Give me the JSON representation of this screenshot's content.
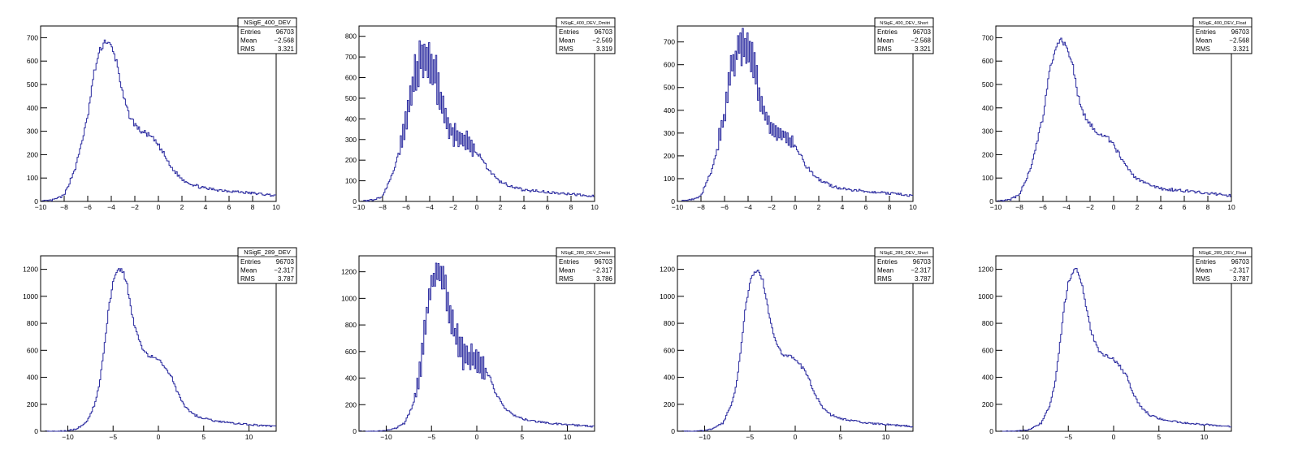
{
  "colors": {
    "line": "#2a2a9f",
    "frame": "#000000",
    "background": "#ffffff"
  },
  "chart_data": [
    {
      "type": "histogram",
      "stats_title": "NSigE_400_DEV",
      "stats": {
        "entries_label": "Entries",
        "entries": "96703",
        "mean_label": "Mean",
        "mean": "-2.568",
        "rms_label": "RMS",
        "rms": "3.321"
      },
      "xlim": [
        -10,
        10
      ],
      "ylim": [
        0,
        750
      ],
      "xticks": [
        -10,
        -8,
        -6,
        -4,
        -2,
        0,
        2,
        4,
        6,
        8,
        10
      ],
      "yticks": [
        0,
        100,
        200,
        300,
        400,
        500,
        600,
        700
      ],
      "x": [
        -10,
        -9,
        -8,
        -7,
        -6,
        -5.5,
        -5,
        -4.5,
        -4,
        -3.5,
        -3,
        -2.5,
        -2,
        -1.5,
        -1,
        -0.5,
        0,
        0.5,
        1,
        2,
        3,
        4,
        5,
        6,
        7,
        8,
        9,
        10
      ],
      "y": [
        0,
        5,
        25,
        150,
        360,
        540,
        640,
        690,
        660,
        590,
        450,
        370,
        330,
        300,
        290,
        270,
        240,
        200,
        150,
        95,
        70,
        55,
        50,
        45,
        40,
        35,
        30,
        25
      ]
    },
    {
      "type": "histogram",
      "stats_title": "NSigE_400_DEV_Dmitri",
      "stats": {
        "entries_label": "Entries",
        "entries": "96703",
        "mean_label": "Mean",
        "mean": "-2.569",
        "rms_label": "RMS",
        "rms": "3.319"
      },
      "xlim": [
        -10,
        10
      ],
      "ylim": [
        0,
        850
      ],
      "xticks": [
        -10,
        -8,
        -6,
        -4,
        -2,
        0,
        2,
        4,
        6,
        8,
        10
      ],
      "yticks": [
        0,
        100,
        200,
        300,
        400,
        500,
        600,
        700,
        800
      ],
      "x": [
        -10,
        -9,
        -8,
        -7,
        -6,
        -5.5,
        -5,
        -4.5,
        -4,
        -3.5,
        -3,
        -2.5,
        -2,
        -1.5,
        -1,
        -0.5,
        0,
        0.5,
        1,
        2,
        3,
        4,
        5,
        6,
        7,
        8,
        9,
        10
      ],
      "y": [
        0,
        5,
        25,
        150,
        390,
        560,
        650,
        700,
        680,
        620,
        470,
        370,
        330,
        300,
        290,
        270,
        240,
        200,
        150,
        95,
        70,
        55,
        50,
        45,
        40,
        35,
        30,
        25
      ],
      "jitter": 110
    },
    {
      "type": "histogram",
      "stats_title": "NSigE_400_DEV_Short",
      "stats": {
        "entries_label": "Entries",
        "entries": "96703",
        "mean_label": "Mean",
        "mean": "-2.568",
        "rms_label": "RMS",
        "rms": "3.321"
      },
      "xlim": [
        -10,
        10
      ],
      "ylim": [
        0,
        770
      ],
      "xticks": [
        -10,
        -8,
        -6,
        -4,
        -2,
        0,
        2,
        4,
        6,
        8,
        10
      ],
      "yticks": [
        0,
        100,
        200,
        300,
        400,
        500,
        600,
        700
      ],
      "x": [
        -10,
        -9,
        -8,
        -7,
        -6,
        -5.5,
        -5,
        -4.5,
        -4,
        -3.5,
        -3,
        -2.5,
        -2,
        -1.5,
        -1,
        -0.5,
        0,
        0.5,
        1,
        2,
        3,
        4,
        5,
        6,
        7,
        8,
        9,
        10
      ],
      "y": [
        0,
        5,
        25,
        150,
        380,
        560,
        650,
        690,
        660,
        590,
        450,
        370,
        330,
        300,
        290,
        270,
        240,
        200,
        150,
        95,
        70,
        55,
        50,
        45,
        40,
        35,
        30,
        25
      ],
      "jitter": 80
    },
    {
      "type": "histogram",
      "stats_title": "NSigE_400_DEV_Float",
      "stats": {
        "entries_label": "Entries",
        "entries": "96703",
        "mean_label": "Mean",
        "mean": "-2.568",
        "rms_label": "RMS",
        "rms": "3.321"
      },
      "xlim": [
        -10,
        10
      ],
      "ylim": [
        0,
        750
      ],
      "xticks": [
        -10,
        -8,
        -6,
        -4,
        -2,
        0,
        2,
        4,
        6,
        8,
        10
      ],
      "yticks": [
        0,
        100,
        200,
        300,
        400,
        500,
        600,
        700
      ],
      "x": [
        -10,
        -9,
        -8,
        -7,
        -6,
        -5.5,
        -5,
        -4.5,
        -4,
        -3.5,
        -3,
        -2.5,
        -2,
        -1.5,
        -1,
        -0.5,
        0,
        0.5,
        1,
        2,
        3,
        4,
        5,
        6,
        7,
        8,
        9,
        10
      ],
      "y": [
        0,
        5,
        25,
        150,
        360,
        540,
        640,
        690,
        660,
        590,
        450,
        370,
        330,
        300,
        290,
        270,
        240,
        200,
        150,
        95,
        70,
        55,
        50,
        45,
        40,
        35,
        30,
        25
      ]
    },
    {
      "type": "histogram",
      "stats_title": "NSigE_289_DEV",
      "stats": {
        "entries_label": "Entries",
        "entries": "96703",
        "mean_label": "Mean",
        "mean": "-2.317",
        "rms_label": "RMS",
        "rms": "3.787"
      },
      "xlim": [
        -13,
        13
      ],
      "ylim": [
        0,
        1300
      ],
      "xticks": [
        -10,
        -5,
        0,
        5,
        10
      ],
      "yticks": [
        0,
        200,
        400,
        600,
        800,
        1000,
        1200
      ],
      "x": [
        -13,
        -11,
        -10,
        -9,
        -8,
        -7,
        -6.5,
        -6,
        -5.5,
        -5,
        -4.5,
        -4,
        -3.5,
        -3,
        -2.5,
        -2,
        -1.5,
        -1,
        -0.5,
        0,
        0.5,
        1,
        1.5,
        2,
        3,
        4,
        5,
        6,
        7,
        8,
        9,
        10,
        11,
        12,
        13
      ],
      "y": [
        0,
        0,
        5,
        20,
        60,
        200,
        350,
        600,
        900,
        1100,
        1190,
        1200,
        1100,
        900,
        750,
        650,
        580,
        560,
        550,
        530,
        500,
        450,
        400,
        300,
        180,
        120,
        95,
        80,
        70,
        60,
        55,
        50,
        45,
        40,
        35
      ]
    },
    {
      "type": "histogram",
      "stats_title": "NSigE_289_DEV_Dmitri",
      "stats": {
        "entries_label": "Entries",
        "entries": "96703",
        "mean_label": "Mean",
        "mean": "-2.317",
        "rms_label": "RMS",
        "rms": "3.786"
      },
      "xlim": [
        -13,
        13
      ],
      "ylim": [
        0,
        1320
      ],
      "xticks": [
        -10,
        -5,
        0,
        5,
        10
      ],
      "yticks": [
        0,
        200,
        400,
        600,
        800,
        1000,
        1200
      ],
      "x": [
        -13,
        -11,
        -10,
        -9,
        -8,
        -7,
        -6.5,
        -6,
        -5.5,
        -5,
        -4.5,
        -4,
        -3.5,
        -3,
        -2.5,
        -2,
        -1.5,
        -1,
        -0.5,
        0,
        0.5,
        1,
        1.5,
        2,
        3,
        4,
        5,
        6,
        7,
        8,
        9,
        10,
        11,
        12,
        13
      ],
      "y": [
        0,
        0,
        5,
        20,
        60,
        200,
        350,
        600,
        900,
        1100,
        1190,
        1200,
        1100,
        900,
        750,
        650,
        580,
        560,
        550,
        530,
        500,
        450,
        400,
        300,
        180,
        120,
        95,
        80,
        70,
        60,
        55,
        50,
        45,
        40,
        35
      ],
      "jitter": 120
    },
    {
      "type": "histogram",
      "stats_title": "NSigE_289_DEV_Short",
      "stats": {
        "entries_label": "Entries",
        "entries": "96703",
        "mean_label": "Mean",
        "mean": "-2.317",
        "rms_label": "RMS",
        "rms": "3.787"
      },
      "xlim": [
        -13,
        13
      ],
      "ylim": [
        0,
        1300
      ],
      "xticks": [
        -10,
        -5,
        0,
        5,
        10
      ],
      "yticks": [
        0,
        200,
        400,
        600,
        800,
        1000,
        1200
      ],
      "x": [
        -13,
        -11,
        -10,
        -9,
        -8,
        -7,
        -6.5,
        -6,
        -5.5,
        -5,
        -4.5,
        -4,
        -3.5,
        -3,
        -2.5,
        -2,
        -1.5,
        -1,
        -0.5,
        0,
        0.5,
        1,
        1.5,
        2,
        3,
        4,
        5,
        6,
        7,
        8,
        9,
        10,
        11,
        12,
        13
      ],
      "y": [
        0,
        0,
        5,
        20,
        60,
        200,
        350,
        600,
        900,
        1100,
        1190,
        1200,
        1100,
        900,
        750,
        650,
        580,
        560,
        550,
        530,
        500,
        450,
        400,
        300,
        180,
        120,
        95,
        80,
        70,
        60,
        55,
        50,
        45,
        40,
        35
      ]
    },
    {
      "type": "histogram",
      "stats_title": "NSigE_289_DEV_Float",
      "stats": {
        "entries_label": "Entries",
        "entries": "96703",
        "mean_label": "Mean",
        "mean": "-2.317",
        "rms_label": "RMS",
        "rms": "3.787"
      },
      "xlim": [
        -13,
        13
      ],
      "ylim": [
        0,
        1300
      ],
      "xticks": [
        -10,
        -5,
        0,
        5,
        10
      ],
      "yticks": [
        0,
        200,
        400,
        600,
        800,
        1000,
        1200
      ],
      "x": [
        -13,
        -11,
        -10,
        -9,
        -8,
        -7,
        -6.5,
        -6,
        -5.5,
        -5,
        -4.5,
        -4,
        -3.5,
        -3,
        -2.5,
        -2,
        -1.5,
        -1,
        -0.5,
        0,
        0.5,
        1,
        1.5,
        2,
        3,
        4,
        5,
        6,
        7,
        8,
        9,
        10,
        11,
        12,
        13
      ],
      "y": [
        0,
        0,
        5,
        20,
        60,
        200,
        350,
        600,
        900,
        1100,
        1190,
        1200,
        1100,
        900,
        750,
        650,
        580,
        560,
        550,
        530,
        500,
        450,
        400,
        300,
        180,
        120,
        95,
        80,
        70,
        60,
        55,
        50,
        45,
        40,
        35
      ]
    }
  ]
}
